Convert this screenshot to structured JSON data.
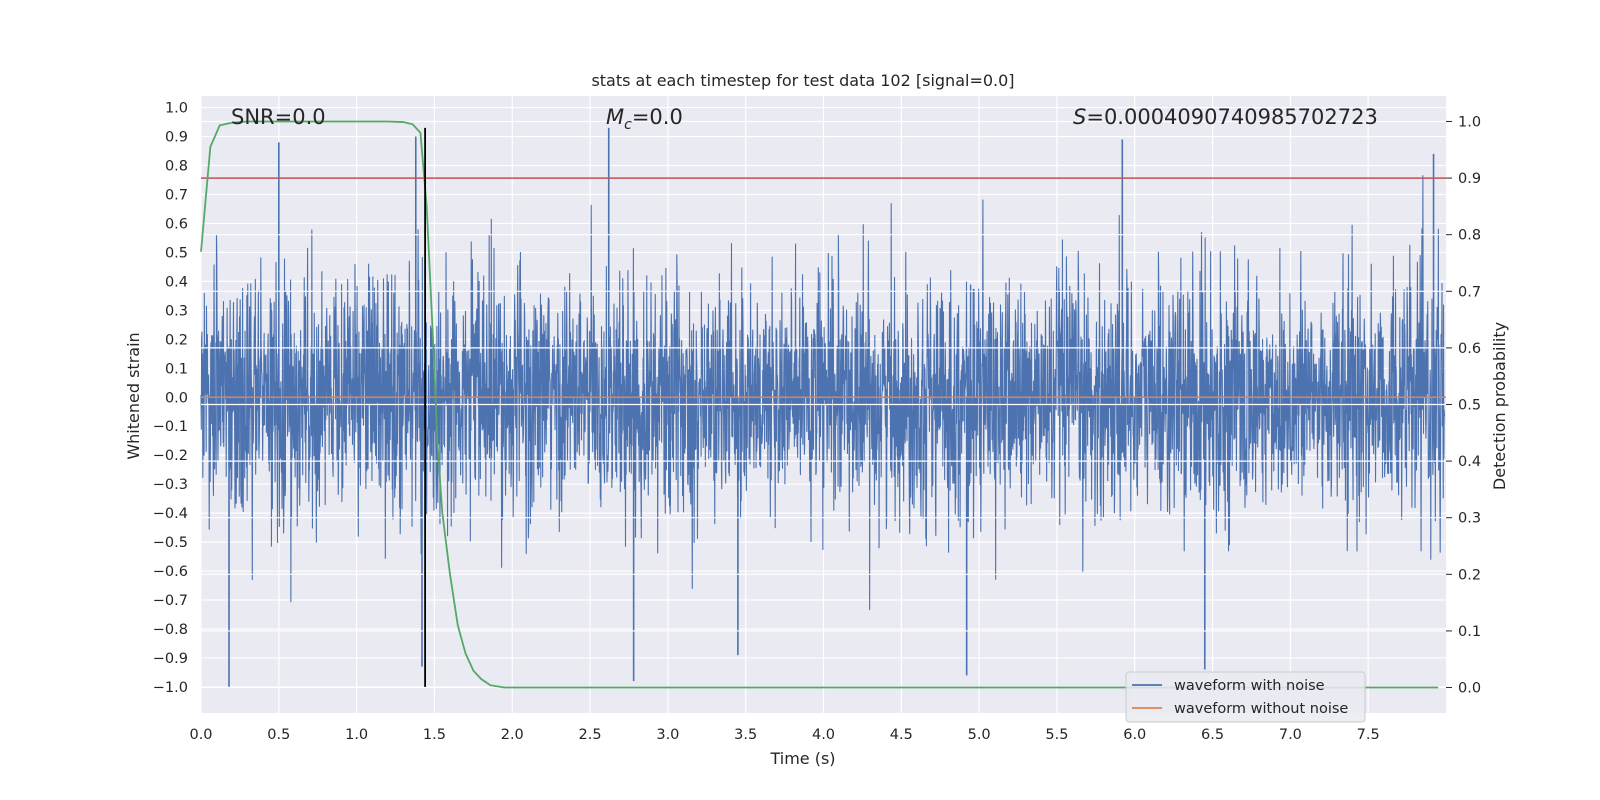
{
  "chart_data": {
    "type": "line",
    "title": "stats at each timestep for test data 102 [signal=0.0]",
    "xlabel": "Time (s)",
    "ylabel_left": "Whitened strain",
    "ylabel_right": "Detection probability",
    "xlim": [
      0.0,
      8.0
    ],
    "ylim_left": [
      -1.09,
      1.04
    ],
    "ylim_right": [
      -0.045,
      1.045
    ],
    "x_ticks": [
      "0.0",
      "0.5",
      "1.0",
      "1.5",
      "2.0",
      "2.5",
      "3.0",
      "3.5",
      "4.0",
      "4.5",
      "5.0",
      "5.5",
      "6.0",
      "6.5",
      "7.0",
      "7.5"
    ],
    "left_ticks": [
      "1.0",
      "0.9",
      "0.8",
      "0.7",
      "0.6",
      "0.5",
      "0.4",
      "0.3",
      "0.2",
      "0.1",
      "0.0",
      "−0.1",
      "−0.2",
      "−0.3",
      "−0.4",
      "−0.5",
      "−0.6",
      "−0.7",
      "−0.8",
      "−0.9",
      "−1.0"
    ],
    "right_ticks": [
      "1.0",
      "0.9",
      "0.8",
      "0.7",
      "0.6",
      "0.5",
      "0.4",
      "0.3",
      "0.2",
      "0.1",
      "0.0"
    ],
    "grid": true,
    "annotations": {
      "snr_label": "SNR=0.0",
      "mc_symbol": "M",
      "mc_sub": "c",
      "mc_value": "=0.0",
      "s_symbol": "S",
      "s_value": "=0.0004090740985702723"
    },
    "series": [
      {
        "name": "waveform with noise",
        "axis": "left",
        "color": "#4c72b0",
        "description": "dense noisy whitened strain, roughly within ±0.6 with spikes near ±0.9",
        "envelope_mean": 0.0,
        "envelope_std": 0.2,
        "spikes": [
          {
            "x": 0.18,
            "y": -1.0
          },
          {
            "x": 0.5,
            "y": 0.88
          },
          {
            "x": 1.38,
            "y": 0.9
          },
          {
            "x": 1.42,
            "y": -0.93
          },
          {
            "x": 2.62,
            "y": 0.93
          },
          {
            "x": 2.78,
            "y": -0.98
          },
          {
            "x": 3.45,
            "y": -0.89
          },
          {
            "x": 4.92,
            "y": -0.96
          },
          {
            "x": 5.92,
            "y": 0.89
          },
          {
            "x": 6.45,
            "y": -0.94
          },
          {
            "x": 7.92,
            "y": 0.84
          }
        ]
      },
      {
        "name": "waveform without noise",
        "axis": "left",
        "color": "#dd8452",
        "x": [
          0.0,
          8.0
        ],
        "y": [
          0.0,
          0.0
        ]
      },
      {
        "name": "detection probability",
        "axis": "right",
        "color": "#55a868",
        "x": [
          0.0,
          0.06,
          0.12,
          0.2,
          0.3,
          0.5,
          1.0,
          1.2,
          1.3,
          1.36,
          1.41,
          1.45,
          1.49,
          1.52,
          1.55,
          1.6,
          1.65,
          1.7,
          1.75,
          1.8,
          1.86,
          1.95,
          2.5,
          5.0,
          7.95
        ],
        "y": [
          0.77,
          0.955,
          0.993,
          0.998,
          1.0,
          1.0,
          1.0,
          1.0,
          0.999,
          0.995,
          0.98,
          0.85,
          0.62,
          0.43,
          0.31,
          0.2,
          0.11,
          0.06,
          0.03,
          0.015,
          0.004,
          0.0,
          0.0,
          0.0,
          0.0
        ]
      }
    ],
    "threshold": {
      "axis": "right",
      "y": 0.9,
      "color": "#c44e52"
    },
    "vline": {
      "x": 1.44,
      "y_range_left": [
        -1.0,
        0.93
      ],
      "color": "#000000"
    },
    "legend": {
      "placement": "lower-right",
      "entries": [
        {
          "label": "waveform with noise",
          "color": "#4c72b0"
        },
        {
          "label": "waveform without noise",
          "color": "#dd8452"
        }
      ]
    }
  }
}
